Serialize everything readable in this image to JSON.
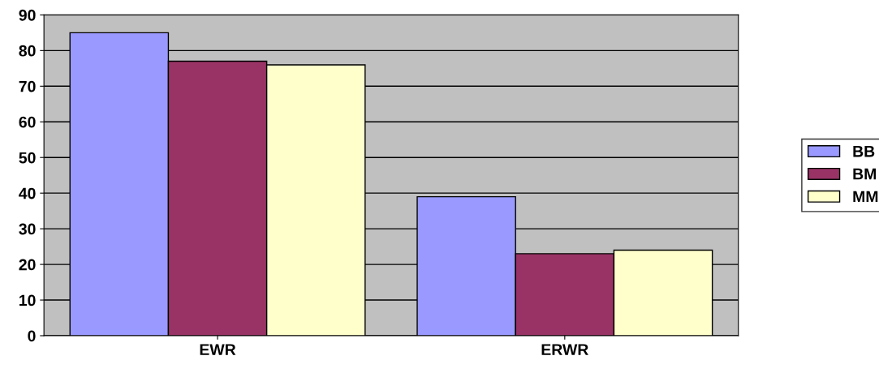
{
  "chart_data": {
    "type": "bar",
    "categories": [
      "EWR",
      "ERWR"
    ],
    "series": [
      {
        "name": "BB",
        "color": "#9999ff",
        "values": [
          85,
          39
        ]
      },
      {
        "name": "BM",
        "color": "#993366",
        "values": [
          77,
          23
        ]
      },
      {
        "name": "MM",
        "color": "#ffffcc",
        "values": [
          76,
          24
        ]
      }
    ],
    "ylim": [
      0,
      90
    ],
    "yticks": [
      0,
      10,
      20,
      30,
      40,
      50,
      60,
      70,
      80,
      90
    ],
    "grid": "y",
    "legend": "right"
  }
}
